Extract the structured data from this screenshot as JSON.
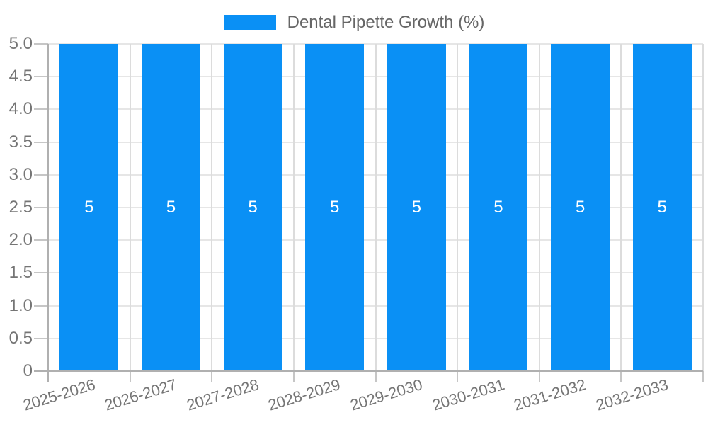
{
  "legend": {
    "label": "Dental Pipette Growth (%)",
    "swatch_color": "#0a90f5"
  },
  "chart_data": {
    "type": "bar",
    "title": "Dental Pipette Growth (%)",
    "legend_position": "top",
    "grid": true,
    "categories": [
      "2025-2026",
      "2026-2027",
      "2027-2028",
      "2028-2029",
      "2029-2030",
      "2030-2031",
      "2031-2032",
      "2032-2033"
    ],
    "series": [
      {
        "name": "Dental Pipette Growth (%)",
        "color": "#0a90f5",
        "values": [
          5,
          5,
          5,
          5,
          5,
          5,
          5,
          5
        ]
      }
    ],
    "bar_value_labels": [
      "5",
      "5",
      "5",
      "5",
      "5",
      "5",
      "5",
      "5"
    ],
    "xlabel": "",
    "ylabel": "",
    "ylim": [
      0,
      5
    ],
    "ytick_step": 0.5,
    "ytick_labels": [
      "5.0",
      "4.5",
      "4.0",
      "3.5",
      "3.0",
      "2.5",
      "2.0",
      "1.5",
      "1.0",
      "0.5",
      "0"
    ]
  },
  "style": {
    "bar_color": "#0a90f5",
    "hgrid_color": "#e6e6e6",
    "vgrid_color": "#dcdcdc",
    "axis_color": "#b0b0b0",
    "tick_color": "#c6c6c6",
    "axis_label_color": "#757575",
    "legend_text_color": "#666666",
    "bar_label_color": "#ffffff",
    "background": "#ffffff"
  }
}
